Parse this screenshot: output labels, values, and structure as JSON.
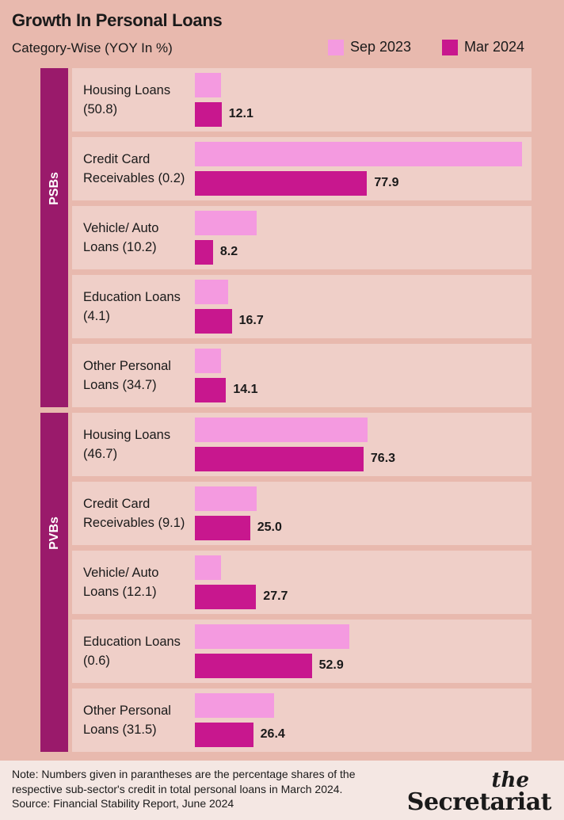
{
  "header": {
    "title": "Growth In Personal Loans",
    "subtitle": "Category-Wise (YOY In %)"
  },
  "legend": [
    {
      "label": "Sep 2023",
      "color": "#f49ae0"
    },
    {
      "label": "Mar 2024",
      "color": "#c8178e"
    }
  ],
  "colors": {
    "background": "#e8b9ae",
    "row_background": "#efcfc8",
    "group_bar": "#9a1a6b",
    "sep_2023": "#f49ae0",
    "mar_2024": "#c8178e"
  },
  "chart_data": {
    "type": "bar",
    "orientation": "horizontal",
    "title": "Growth In Personal Loans",
    "subtitle": "Category-Wise (YOY In %)",
    "xlim": [
      0,
      148
    ],
    "groups": [
      {
        "name": "PSBs",
        "categories": [
          "Housing Loans (50.8)",
          "Credit Card Receivables (0.2)",
          "Vehicle/ Auto Loans (10.2)",
          "Education Loans (4.1)",
          "Other Personal Loans (34.7)"
        ],
        "series": [
          {
            "name": "Sep 2023",
            "values": [
              12,
              148,
              28,
              15,
              12
            ]
          },
          {
            "name": "Mar 2024",
            "values": [
              12.1,
              77.9,
              8.2,
              16.7,
              14.1
            ]
          }
        ]
      },
      {
        "name": "PVBs",
        "categories": [
          "Housing Loans (46.7)",
          "Credit Card Receivables (9.1)",
          "Vehicle/ Auto Loans (12.1)",
          "Education Loans (0.6)",
          "Other Personal Loans (31.5)"
        ],
        "series": [
          {
            "name": "Sep 2023",
            "values": [
              78,
              28,
              12,
              70,
              36
            ]
          },
          {
            "name": "Mar 2024",
            "values": [
              76.3,
              25.0,
              27.7,
              52.9,
              26.4
            ]
          }
        ]
      }
    ],
    "value_labels": [
      [
        "12.1",
        "77.9",
        "8.2",
        "16.7",
        "14.1"
      ],
      [
        "76.3",
        "25.0",
        "27.7",
        "52.9",
        "26.4"
      ]
    ]
  },
  "footer": {
    "note": "Note: Numbers given in parantheses are the percentage shares of the respective sub-sector's credit in total personal loans in March 2024.",
    "source": "Source: Financial Stability Report, June 2024",
    "logo_small": "the",
    "logo_main": "Secretariat"
  }
}
